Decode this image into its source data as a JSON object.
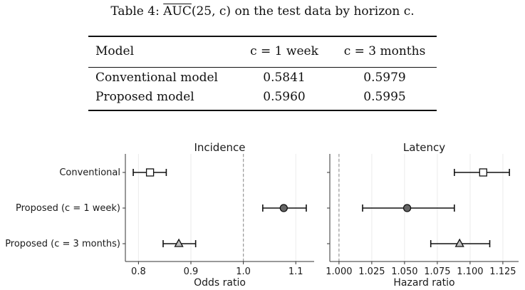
{
  "table": {
    "caption_prefix": "Table 4: ",
    "caption_auc": "AUC",
    "caption_args": "(25, c)",
    "caption_suffix": " on the test data by horizon c.",
    "headers": [
      "Model",
      "c = 1 week",
      "c = 3 months"
    ],
    "rows": [
      {
        "model": "Conventional model",
        "week": "0.5841",
        "months": "0.5979"
      },
      {
        "model": "Proposed model",
        "week": "0.5960",
        "months": "0.5995"
      }
    ]
  },
  "chart_data": [
    {
      "type": "scatter",
      "title": "Incidence",
      "xlabel": "Odds ratio",
      "ylabel": "",
      "xlim": [
        0.775,
        1.135
      ],
      "reference_line": 1.0,
      "x_ticks": [
        "0.8",
        "0.9",
        "1.0",
        "1.1"
      ],
      "x_tick_values": [
        0.8,
        0.9,
        1.0,
        1.1
      ],
      "categories": [
        "Conventional",
        "Proposed (c = 1 week)",
        "Proposed (c = 3 months)"
      ],
      "estimates": [
        0.822,
        1.077,
        0.877
      ],
      "lower": [
        0.79,
        1.037,
        0.847
      ],
      "upper": [
        0.853,
        1.12,
        0.909
      ],
      "markers": [
        "square",
        "circle",
        "triangle"
      ]
    },
    {
      "type": "scatter",
      "title": "Latency",
      "xlabel": "Hazard ratio",
      "ylabel": "",
      "xlim": [
        0.993,
        1.137
      ],
      "reference_line": 1.0,
      "x_ticks": [
        "1.000",
        "1.025",
        "1.050",
        "1.075",
        "1.100",
        "1.125"
      ],
      "x_tick_values": [
        1.0,
        1.025,
        1.05,
        1.075,
        1.1,
        1.125
      ],
      "categories": [
        "Conventional",
        "Proposed (c = 1 week)",
        "Proposed (c = 3 months)"
      ],
      "estimates": [
        1.11,
        1.052,
        1.092
      ],
      "lower": [
        1.088,
        1.018,
        1.07
      ],
      "upper": [
        1.13,
        1.088,
        1.115
      ],
      "markers": [
        "square",
        "circle",
        "triangle"
      ]
    }
  ],
  "colors": {
    "square_fill": "#ffffff",
    "circle_fill": "#666666",
    "triangle_fill": "#bdbdbd",
    "grid": "#ebebeb",
    "reference": "#9a9a9a"
  }
}
